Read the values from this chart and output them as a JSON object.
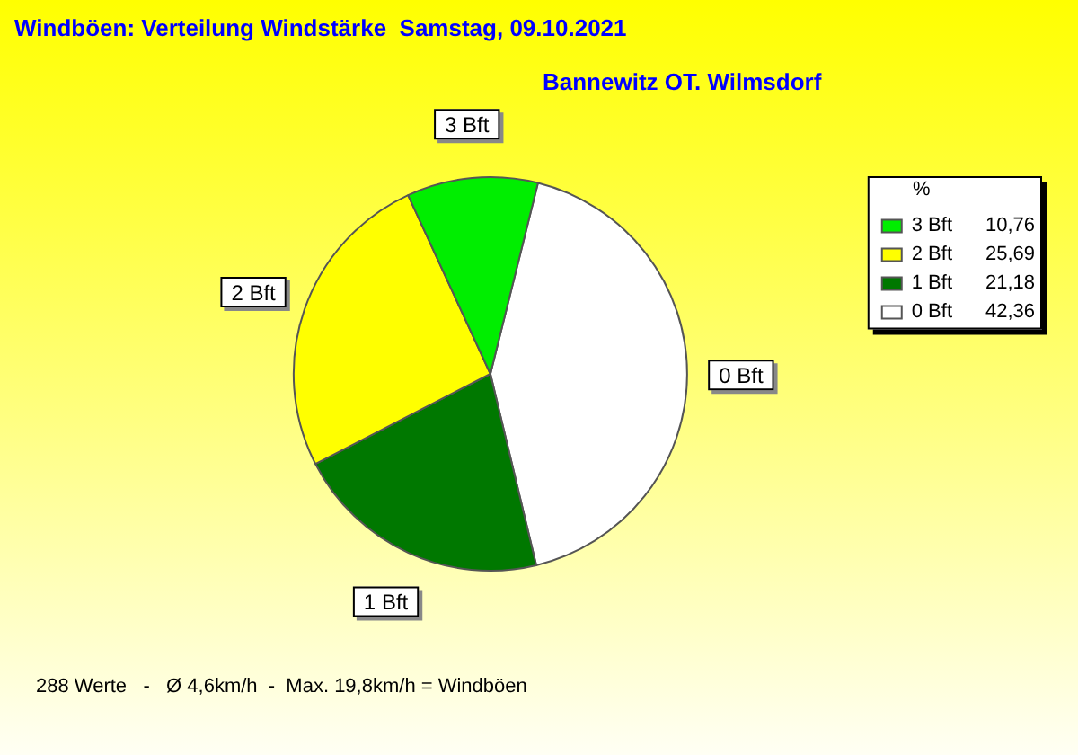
{
  "chart_data": {
    "type": "pie",
    "title": "Windböen: Verteilung Windstärke  Samstag, 09.10.2021",
    "subtitle": "Bannewitz OT. Wilmsdorf",
    "categories": [
      "0 Bft",
      "1 Bft",
      "2 Bft",
      "3 Bft"
    ],
    "values": [
      42.36,
      21.18,
      25.69,
      10.76
    ],
    "value_labels": [
      "42,36",
      "21,18",
      "25,69",
      "10,76"
    ],
    "colors": [
      "#ffffff",
      "#007800",
      "#ffff00",
      "#00ee00"
    ],
    "legend": "top right",
    "legend_title": "%",
    "annotations": [
      "288 Werte   -   Ø 4,6km/h  -  Max. 19,8km/h = Windböen"
    ]
  }
}
